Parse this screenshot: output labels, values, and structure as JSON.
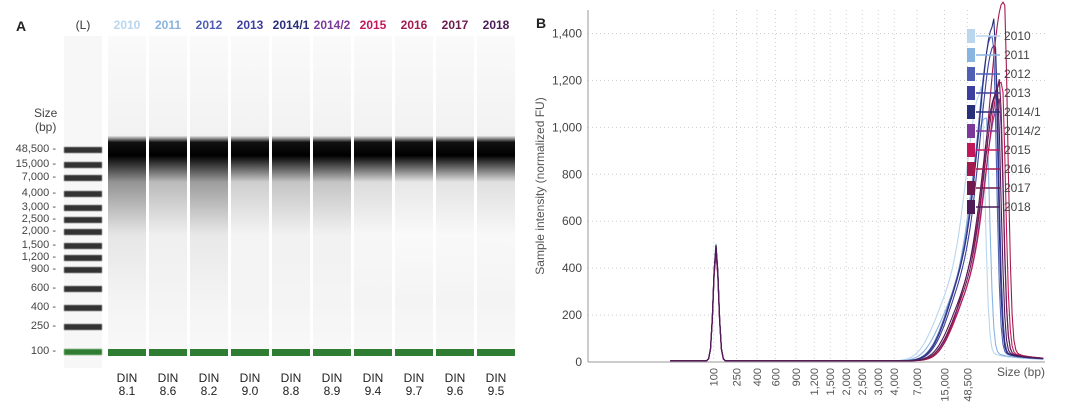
{
  "panel_a": {
    "letter": "A",
    "ladder_label": "(L)",
    "size_label_line1": "Size",
    "size_label_line2": "(bp)",
    "ladder_ticks": [
      "48,500",
      "15,000",
      "7,000",
      "4,000",
      "3,000",
      "2,500",
      "2,000",
      "1,500",
      "1,200",
      "900",
      "600",
      "400",
      "250",
      "100"
    ],
    "din_word": "DIN",
    "lanes": [
      {
        "label": "2010",
        "din": "8.1",
        "color": "#b9d6ee",
        "smear": 0.55
      },
      {
        "label": "2011",
        "din": "8.6",
        "color": "#8ab4e0",
        "smear": 0.35
      },
      {
        "label": "2012",
        "din": "8.2",
        "color": "#4f5fb3",
        "smear": 0.5
      },
      {
        "label": "2013",
        "din": "9.0",
        "color": "#3d3f9e",
        "smear": 0.25
      },
      {
        "label": "2014/1",
        "din": "8.8",
        "color": "#2a2f7a",
        "smear": 0.3
      },
      {
        "label": "2014/2",
        "din": "8.9",
        "color": "#7b3a9a",
        "smear": 0.3
      },
      {
        "label": "2015",
        "din": "9.4",
        "color": "#c2185b",
        "smear": 0.18
      },
      {
        "label": "2016",
        "din": "9.7",
        "color": "#a31a4e",
        "smear": 0.12
      },
      {
        "label": "2017",
        "din": "9.6",
        "color": "#6d1b4d",
        "smear": 0.14
      },
      {
        "label": "2018",
        "din": "9.5",
        "color": "#4b1c58",
        "smear": 0.16
      }
    ]
  },
  "chart_data": {
    "type": "line",
    "panel_letter": "B",
    "ylabel": "Sample intensity (normalized FU)",
    "xlabel": "Size (bp)",
    "ylim": [
      0,
      1500
    ],
    "yticks": [
      "0",
      "200",
      "400",
      "600",
      "800",
      "1,000",
      "1,200",
      "1,400"
    ],
    "xticks": [
      "100",
      "250",
      "400",
      "600",
      "900",
      "1,200",
      "1,500",
      "2,000",
      "2,500",
      "3,000",
      "4,000",
      "7,000",
      "15,000",
      "48,500"
    ],
    "grid": true,
    "legend_position": "top-right",
    "series": [
      {
        "name": "2010",
        "color": "#b9d6ee",
        "marker_peak": 500,
        "main_peak": 1100,
        "peak_pos": 0.86
      },
      {
        "name": "2011",
        "color": "#8ab4e0",
        "marker_peak": 480,
        "main_peak": 1000,
        "peak_pos": 0.87
      },
      {
        "name": "2012",
        "color": "#4f5fb3",
        "marker_peak": 490,
        "main_peak": 1340,
        "peak_pos": 0.885
      },
      {
        "name": "2013",
        "color": "#3d3f9e",
        "marker_peak": 470,
        "main_peak": 1300,
        "peak_pos": 0.89
      },
      {
        "name": "2014/1",
        "color": "#2a2f7a",
        "marker_peak": 495,
        "main_peak": 1380,
        "peak_pos": 0.888
      },
      {
        "name": "2014/2",
        "color": "#7b3a9a",
        "marker_peak": 460,
        "main_peak": 1050,
        "peak_pos": 0.9
      },
      {
        "name": "2015",
        "color": "#c2185b",
        "marker_peak": 470,
        "main_peak": 1150,
        "peak_pos": 0.905
      },
      {
        "name": "2016",
        "color": "#a31a4e",
        "marker_peak": 480,
        "main_peak": 1480,
        "peak_pos": 0.91
      },
      {
        "name": "2017",
        "color": "#6d1b4d",
        "marker_peak": 485,
        "main_peak": 1130,
        "peak_pos": 0.9
      },
      {
        "name": "2018",
        "color": "#4b1c58",
        "marker_peak": 490,
        "main_peak": 1100,
        "peak_pos": 0.895
      }
    ]
  }
}
